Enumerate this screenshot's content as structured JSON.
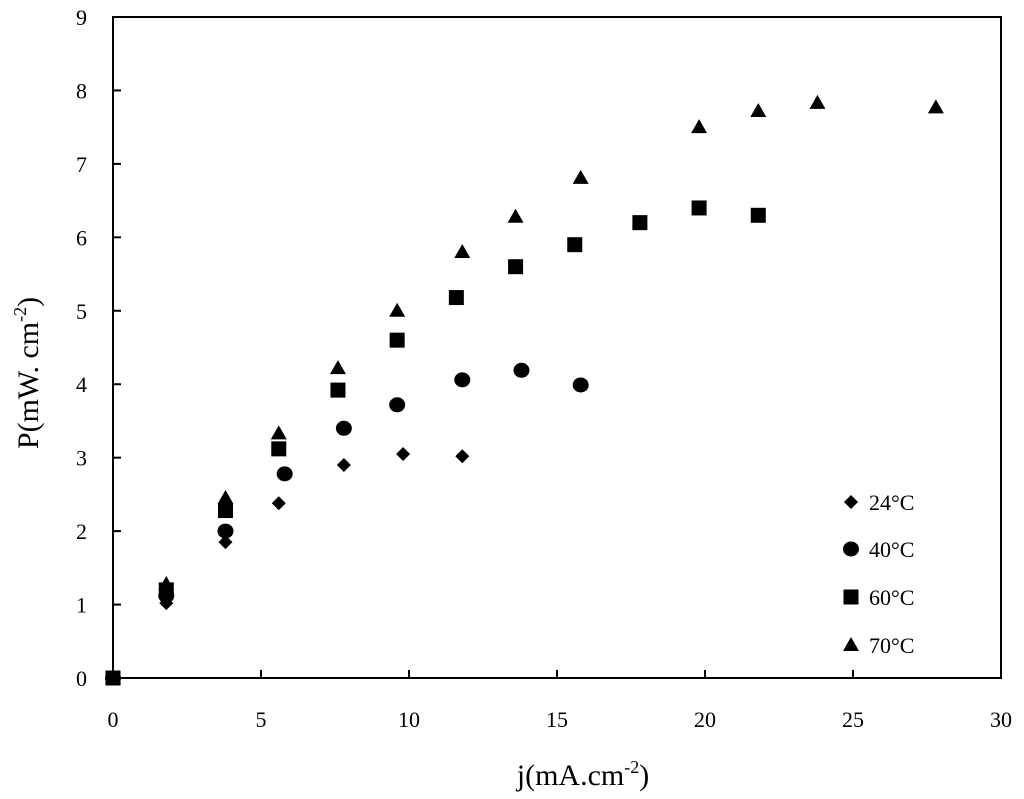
{
  "chart_data": {
    "type": "scatter",
    "title": "",
    "xlabel": "j(mA.cm",
    "xlabel_sup": "-2",
    "xlabel_end": ")",
    "ylabel": "P(mW. cm",
    "ylabel_sup": "-2",
    "ylabel_end": ")",
    "xlim": [
      0,
      30
    ],
    "ylim": [
      0,
      9
    ],
    "xticks": [
      "0",
      "5",
      "10",
      "15",
      "20",
      "25",
      "30"
    ],
    "yticks": [
      "0",
      "1",
      "2",
      "3",
      "4",
      "5",
      "6",
      "7",
      "8",
      "9"
    ],
    "grid": false,
    "legend_position": "bottom-right",
    "series": [
      {
        "name": "24°C",
        "marker": "diamond",
        "x": [
          0,
          1.8,
          3.8,
          5.6,
          7.8,
          9.8,
          11.8
        ],
        "y": [
          0,
          1.02,
          1.85,
          2.38,
          2.9,
          3.05,
          3.02
        ]
      },
      {
        "name": "40°C",
        "marker": "circle",
        "x": [
          0,
          1.8,
          3.8,
          5.8,
          7.8,
          9.6,
          11.8,
          13.8,
          15.8
        ],
        "y": [
          0,
          1.12,
          2.0,
          2.78,
          3.4,
          3.72,
          4.06,
          4.19,
          3.99
        ]
      },
      {
        "name": "60°C",
        "marker": "square",
        "x": [
          0,
          1.8,
          3.8,
          5.6,
          7.6,
          9.6,
          11.6,
          13.6,
          15.6,
          17.8,
          19.8,
          21.8
        ],
        "y": [
          0,
          1.2,
          2.28,
          3.12,
          3.92,
          4.6,
          5.18,
          5.6,
          5.9,
          6.2,
          6.4,
          6.3
        ]
      },
      {
        "name": "70°C",
        "marker": "triangle",
        "x": [
          0,
          1.8,
          3.8,
          5.6,
          7.6,
          9.6,
          11.8,
          13.6,
          15.8,
          19.8,
          21.8,
          23.8,
          27.8
        ],
        "y": [
          0,
          1.28,
          2.45,
          3.33,
          4.22,
          5.0,
          5.8,
          6.28,
          6.81,
          7.5,
          7.72,
          7.83,
          7.77
        ]
      }
    ]
  }
}
